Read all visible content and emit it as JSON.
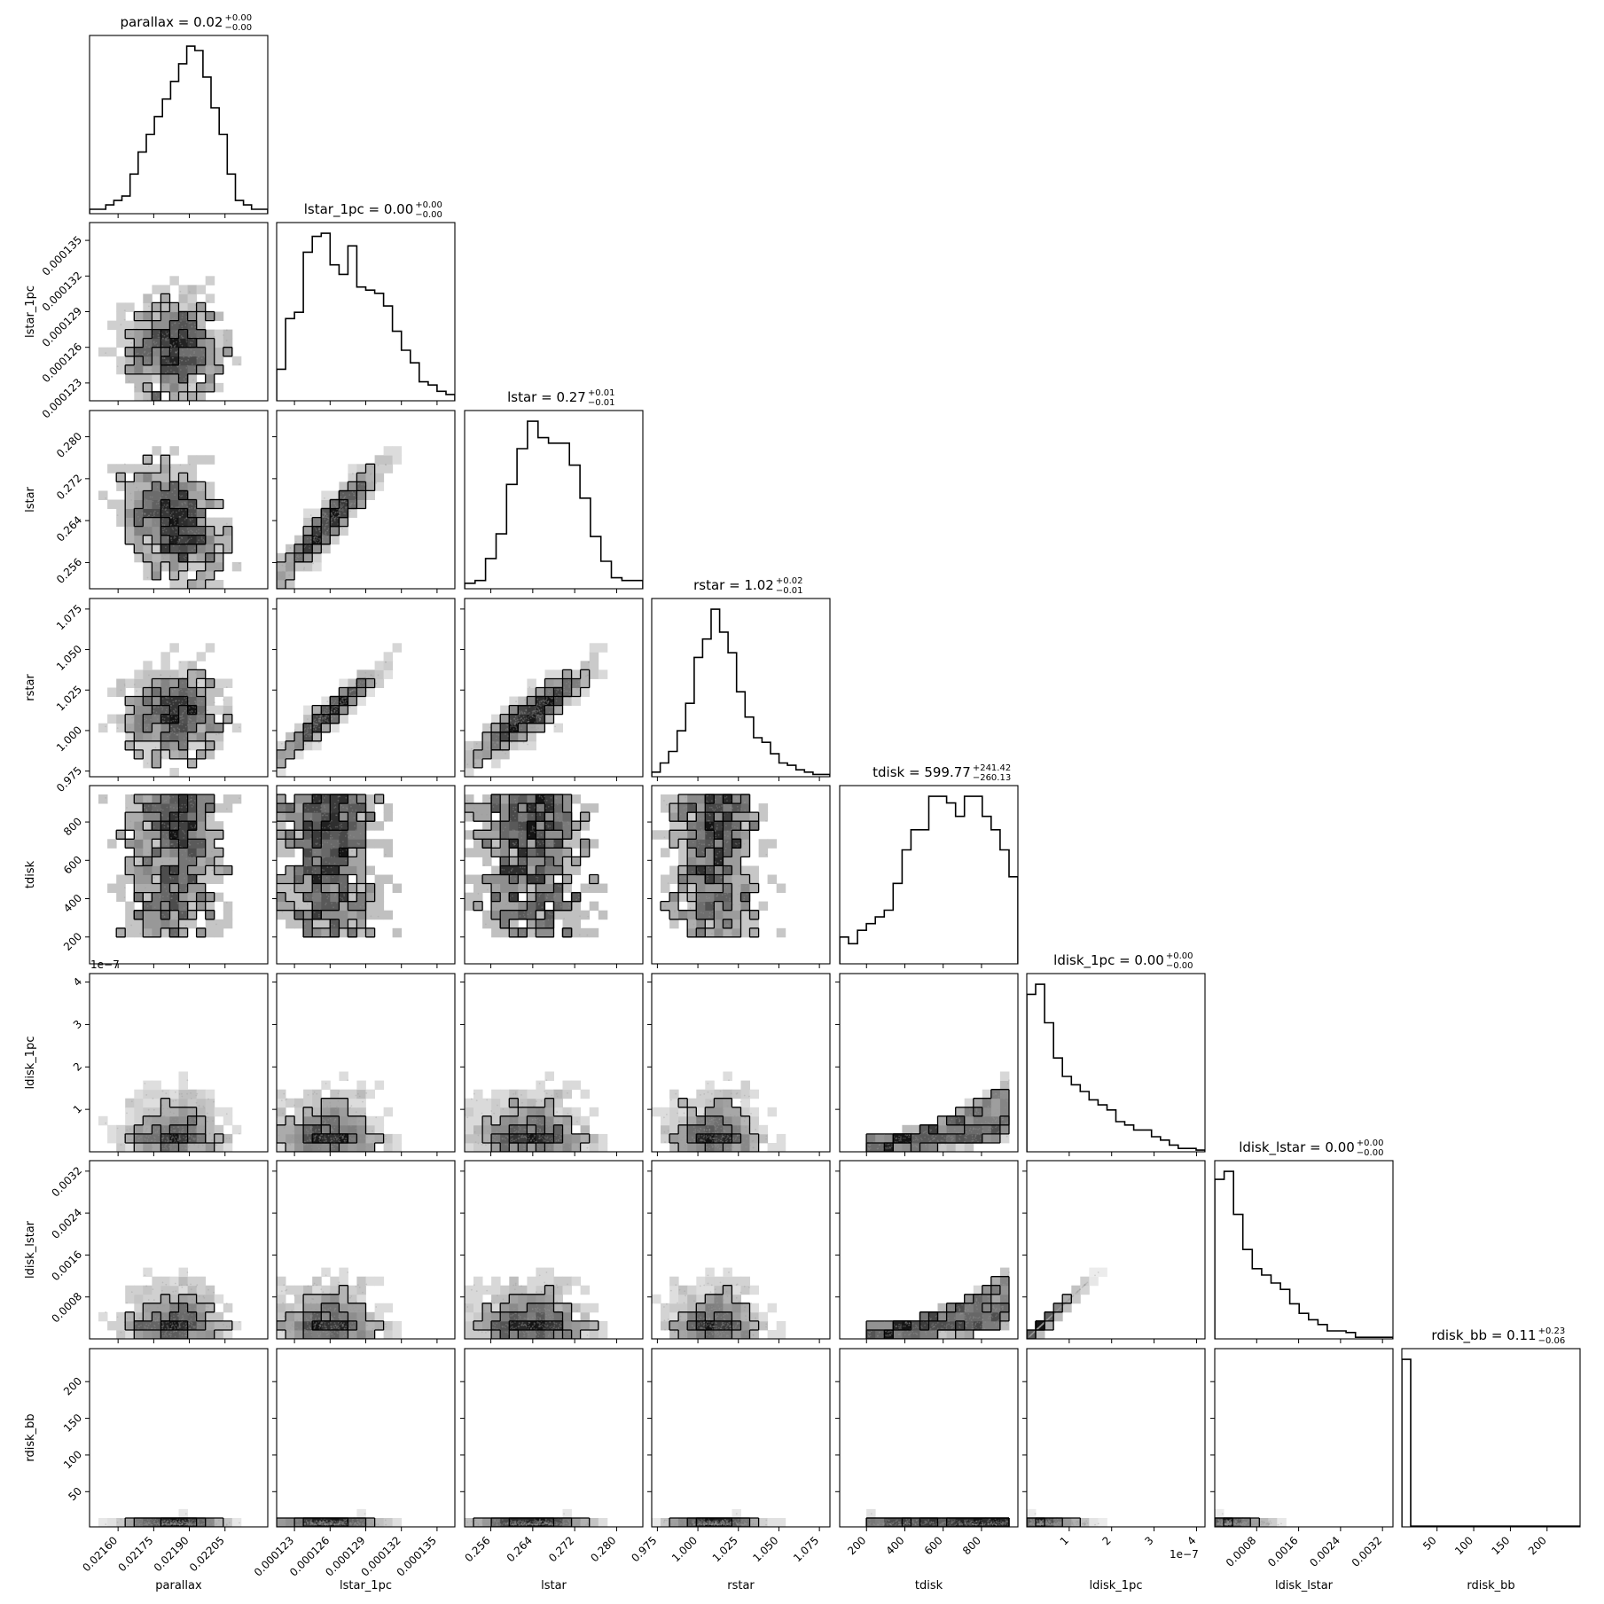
{
  "chart_data": {
    "type": "corner",
    "parameters": [
      "parallax",
      "lstar_1pc",
      "lstar",
      "rstar",
      "tdisk",
      "ldisk_1pc",
      "ldisk_lstar",
      "rdisk_bb"
    ],
    "axis_labels": [
      "parallax",
      "lstar_1pc",
      "lstar",
      "rstar",
      "tdisk",
      "ldisk_1pc",
      "ldisk_lstar",
      "rdisk_bb"
    ],
    "ranges": [
      [
        0.02148,
        0.02223
      ],
      [
        0.0001215,
        0.0001365
      ],
      [
        0.251,
        0.285
      ],
      [
        0.9715,
        1.0815
      ],
      [
        60,
        990
      ],
      [
        0.0,
        4.2e-07
      ],
      [
        0.0,
        0.0034
      ],
      [
        2,
        245
      ]
    ],
    "ticks": [
      [
        0.0216,
        0.02175,
        0.0219,
        0.02205
      ],
      [
        0.000123,
        0.000126,
        0.000129,
        0.000132,
        0.000135
      ],
      [
        0.256,
        0.264,
        0.272,
        0.28
      ],
      [
        0.975,
        1.0,
        1.025,
        1.05,
        1.075
      ],
      [
        200,
        400,
        600,
        800
      ],
      [
        1e-07,
        2e-07,
        3e-07,
        4e-07
      ],
      [
        0.0008,
        0.0016,
        0.0024,
        0.0032
      ],
      [
        50,
        100,
        150,
        200
      ]
    ],
    "tick_labels": [
      [
        "0.02160",
        "0.02175",
        "0.02190",
        "0.02205"
      ],
      [
        "0.000123",
        "0.000126",
        "0.000129",
        "0.000132",
        "0.000135"
      ],
      [
        "0.256",
        "0.264",
        "0.272",
        "0.280"
      ],
      [
        "0.975",
        "1.000",
        "1.025",
        "1.050",
        "1.075"
      ],
      [
        "200",
        "400",
        "600",
        "800"
      ],
      [
        "1",
        "2",
        "3",
        "4"
      ],
      [
        "0.0008",
        "0.0016",
        "0.0024",
        "0.0032"
      ],
      [
        "50",
        "100",
        "150",
        "200"
      ]
    ],
    "offset_label": "1e−7",
    "titles": [
      {
        "name": "parallax",
        "value": "0.02",
        "plus": "+0.00",
        "minus": "−0.00"
      },
      {
        "name": "lstar_1pc",
        "value": "0.00",
        "plus": "+0.00",
        "minus": "−0.00"
      },
      {
        "name": "lstar",
        "value": "0.27",
        "plus": "+0.01",
        "minus": "−0.01"
      },
      {
        "name": "rstar",
        "value": "1.02",
        "plus": "+0.02",
        "minus": "−0.01"
      },
      {
        "name": "tdisk",
        "value": "599.77",
        "plus": "+241.42",
        "minus": "−260.13"
      },
      {
        "name": "ldisk_1pc",
        "value": "0.00",
        "plus": "+0.00",
        "minus": "−0.00"
      },
      {
        "name": "ldisk_lstar",
        "value": "0.00",
        "plus": "+0.00",
        "minus": "−0.00"
      },
      {
        "name": "rdisk_bb",
        "value": "0.11",
        "plus": "+0.23",
        "minus": "−0.06"
      }
    ],
    "histograms": [
      [
        1,
        1,
        2,
        3,
        4,
        9,
        14,
        18,
        22,
        26,
        30,
        34,
        38,
        37,
        31,
        24,
        18,
        9,
        3,
        2,
        1,
        1
      ],
      [
        10,
        26,
        28,
        47,
        52,
        53,
        43,
        40,
        49,
        36,
        35,
        34,
        30,
        22,
        16,
        12,
        6,
        5,
        3,
        2
      ],
      [
        2,
        3,
        11,
        20,
        38,
        51,
        61,
        55,
        53,
        53,
        45,
        33,
        19,
        10,
        4,
        3,
        3
      ],
      [
        2,
        6,
        11,
        20,
        32,
        52,
        60,
        73,
        63,
        54,
        37,
        26,
        17,
        15,
        10,
        6,
        5,
        3,
        2,
        1,
        1
      ],
      [
        4,
        3,
        5,
        6,
        7,
        8,
        12,
        17,
        20,
        20,
        25,
        25,
        24,
        22,
        25,
        25,
        22,
        20,
        17,
        13
      ],
      [
        94,
        100,
        77,
        56,
        45,
        40,
        36,
        31,
        28,
        25,
        18,
        16,
        13,
        13,
        9,
        7,
        4,
        2,
        2,
        1
      ],
      [
        100,
        105,
        78,
        56,
        44,
        40,
        35,
        31,
        22,
        16,
        12,
        9,
        5,
        5,
        4,
        1,
        1,
        1,
        1
      ],
      [
        230,
        1,
        1,
        1,
        1,
        1,
        1,
        1,
        1,
        1,
        1,
        1,
        1,
        1,
        1,
        1,
        1,
        1,
        1,
        1
      ]
    ]
  }
}
